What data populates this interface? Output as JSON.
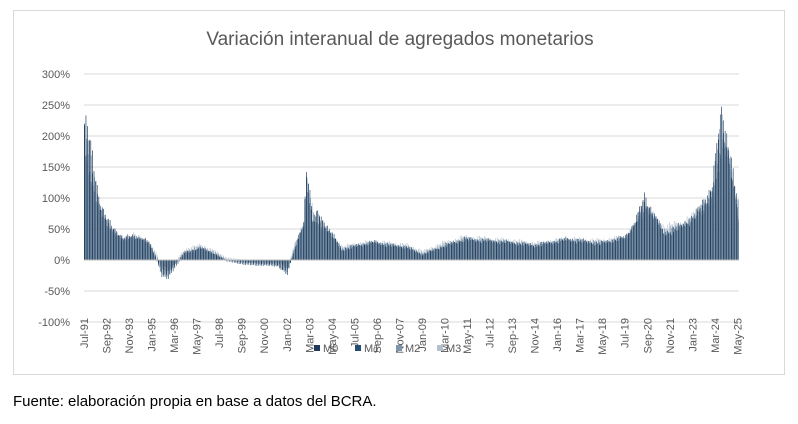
{
  "chart_data": {
    "type": "bar",
    "title": "Variación interanual de agregados monetarios",
    "ylim": [
      -100,
      300
    ],
    "y_ticks": [
      "300%",
      "250%",
      "200%",
      "150%",
      "100%",
      "50%",
      "0%",
      "-50%",
      "-100%"
    ],
    "y_tick_values": [
      300,
      250,
      200,
      150,
      100,
      50,
      0,
      -50,
      -100
    ],
    "x_tick_labels": [
      "Jul-91",
      "Sep-92",
      "Nov-93",
      "Jan-95",
      "Mar-96",
      "May-97",
      "Jul-98",
      "Sep-99",
      "Nov-00",
      "Jan-02",
      "Mar-03",
      "May-04",
      "Jul-05",
      "Sep-06",
      "Nov-07",
      "Jan-09",
      "Mar-10",
      "May-11",
      "Jul-12",
      "Sep-13",
      "Nov-14",
      "Jan-16",
      "Mar-17",
      "May-18",
      "Jul-19",
      "Sep-20",
      "Nov-21",
      "Jan-23",
      "Mar-24",
      "May-25"
    ],
    "x_tick_index": [
      0,
      14,
      28,
      42,
      56,
      70,
      84,
      98,
      112,
      126,
      140,
      154,
      168,
      182,
      196,
      210,
      224,
      238,
      252,
      266,
      280,
      294,
      308,
      322,
      336,
      350,
      364,
      378,
      392,
      406
    ],
    "n_months": 407,
    "profile_month_index": [
      0,
      2,
      6,
      10,
      14,
      24,
      30,
      40,
      44,
      48,
      52,
      62,
      72,
      80,
      88,
      100,
      120,
      126,
      130,
      136,
      138,
      142,
      145,
      150,
      160,
      170,
      180,
      190,
      200,
      210,
      222,
      236,
      250,
      262,
      280,
      300,
      320,
      336,
      342,
      348,
      352,
      360,
      370,
      380,
      390,
      396,
      400,
      404,
      406
    ],
    "series": [
      {
        "name": "M0",
        "color": "#1f3a5a",
        "values": [
          220,
          210,
          150,
          90,
          65,
          35,
          40,
          30,
          8,
          -20,
          -25,
          12,
          20,
          12,
          0,
          -5,
          -8,
          -20,
          10,
          55,
          140,
          60,
          72,
          55,
          15,
          22,
          28,
          22,
          20,
          8,
          20,
          32,
          30,
          28,
          22,
          32,
          25,
          35,
          60,
          100,
          85,
          40,
          50,
          70,
          115,
          230,
          180,
          110,
          85
        ]
      },
      {
        "name": "M1",
        "color": "#264e70",
        "values": [
          200,
          190,
          140,
          85,
          60,
          32,
          38,
          28,
          5,
          -25,
          -30,
          10,
          18,
          10,
          -2,
          -8,
          -10,
          -25,
          15,
          60,
          150,
          65,
          75,
          58,
          18,
          25,
          30,
          25,
          22,
          10,
          22,
          35,
          32,
          30,
          25,
          35,
          28,
          38,
          62,
          95,
          80,
          45,
          55,
          75,
          120,
          240,
          190,
          120,
          90
        ]
      },
      {
        "name": "M2",
        "color": "#7f95ab",
        "values": [
          170,
          160,
          110,
          75,
          55,
          30,
          40,
          25,
          10,
          -15,
          -20,
          15,
          22,
          14,
          2,
          -3,
          -5,
          -15,
          20,
          60,
          130,
          70,
          60,
          50,
          20,
          25,
          28,
          25,
          22,
          12,
          25,
          35,
          33,
          30,
          25,
          33,
          30,
          35,
          55,
          90,
          75,
          50,
          55,
          70,
          100,
          200,
          170,
          100,
          70
        ]
      },
      {
        "name": "M3",
        "color": "#b4c0cd",
        "values": [
          160,
          150,
          100,
          70,
          55,
          35,
          42,
          28,
          12,
          -10,
          -15,
          18,
          25,
          16,
          4,
          0,
          -2,
          -10,
          25,
          65,
          120,
          72,
          55,
          48,
          22,
          28,
          30,
          28,
          25,
          15,
          28,
          38,
          35,
          33,
          28,
          35,
          32,
          38,
          58,
          85,
          70,
          55,
          60,
          75,
          95,
          190,
          160,
          95,
          65
        ]
      }
    ]
  },
  "legend": [
    "M0",
    "M1",
    "M2",
    "M3"
  ],
  "source_note": "Fuente: elaboración propia en base a datos del BCRA."
}
